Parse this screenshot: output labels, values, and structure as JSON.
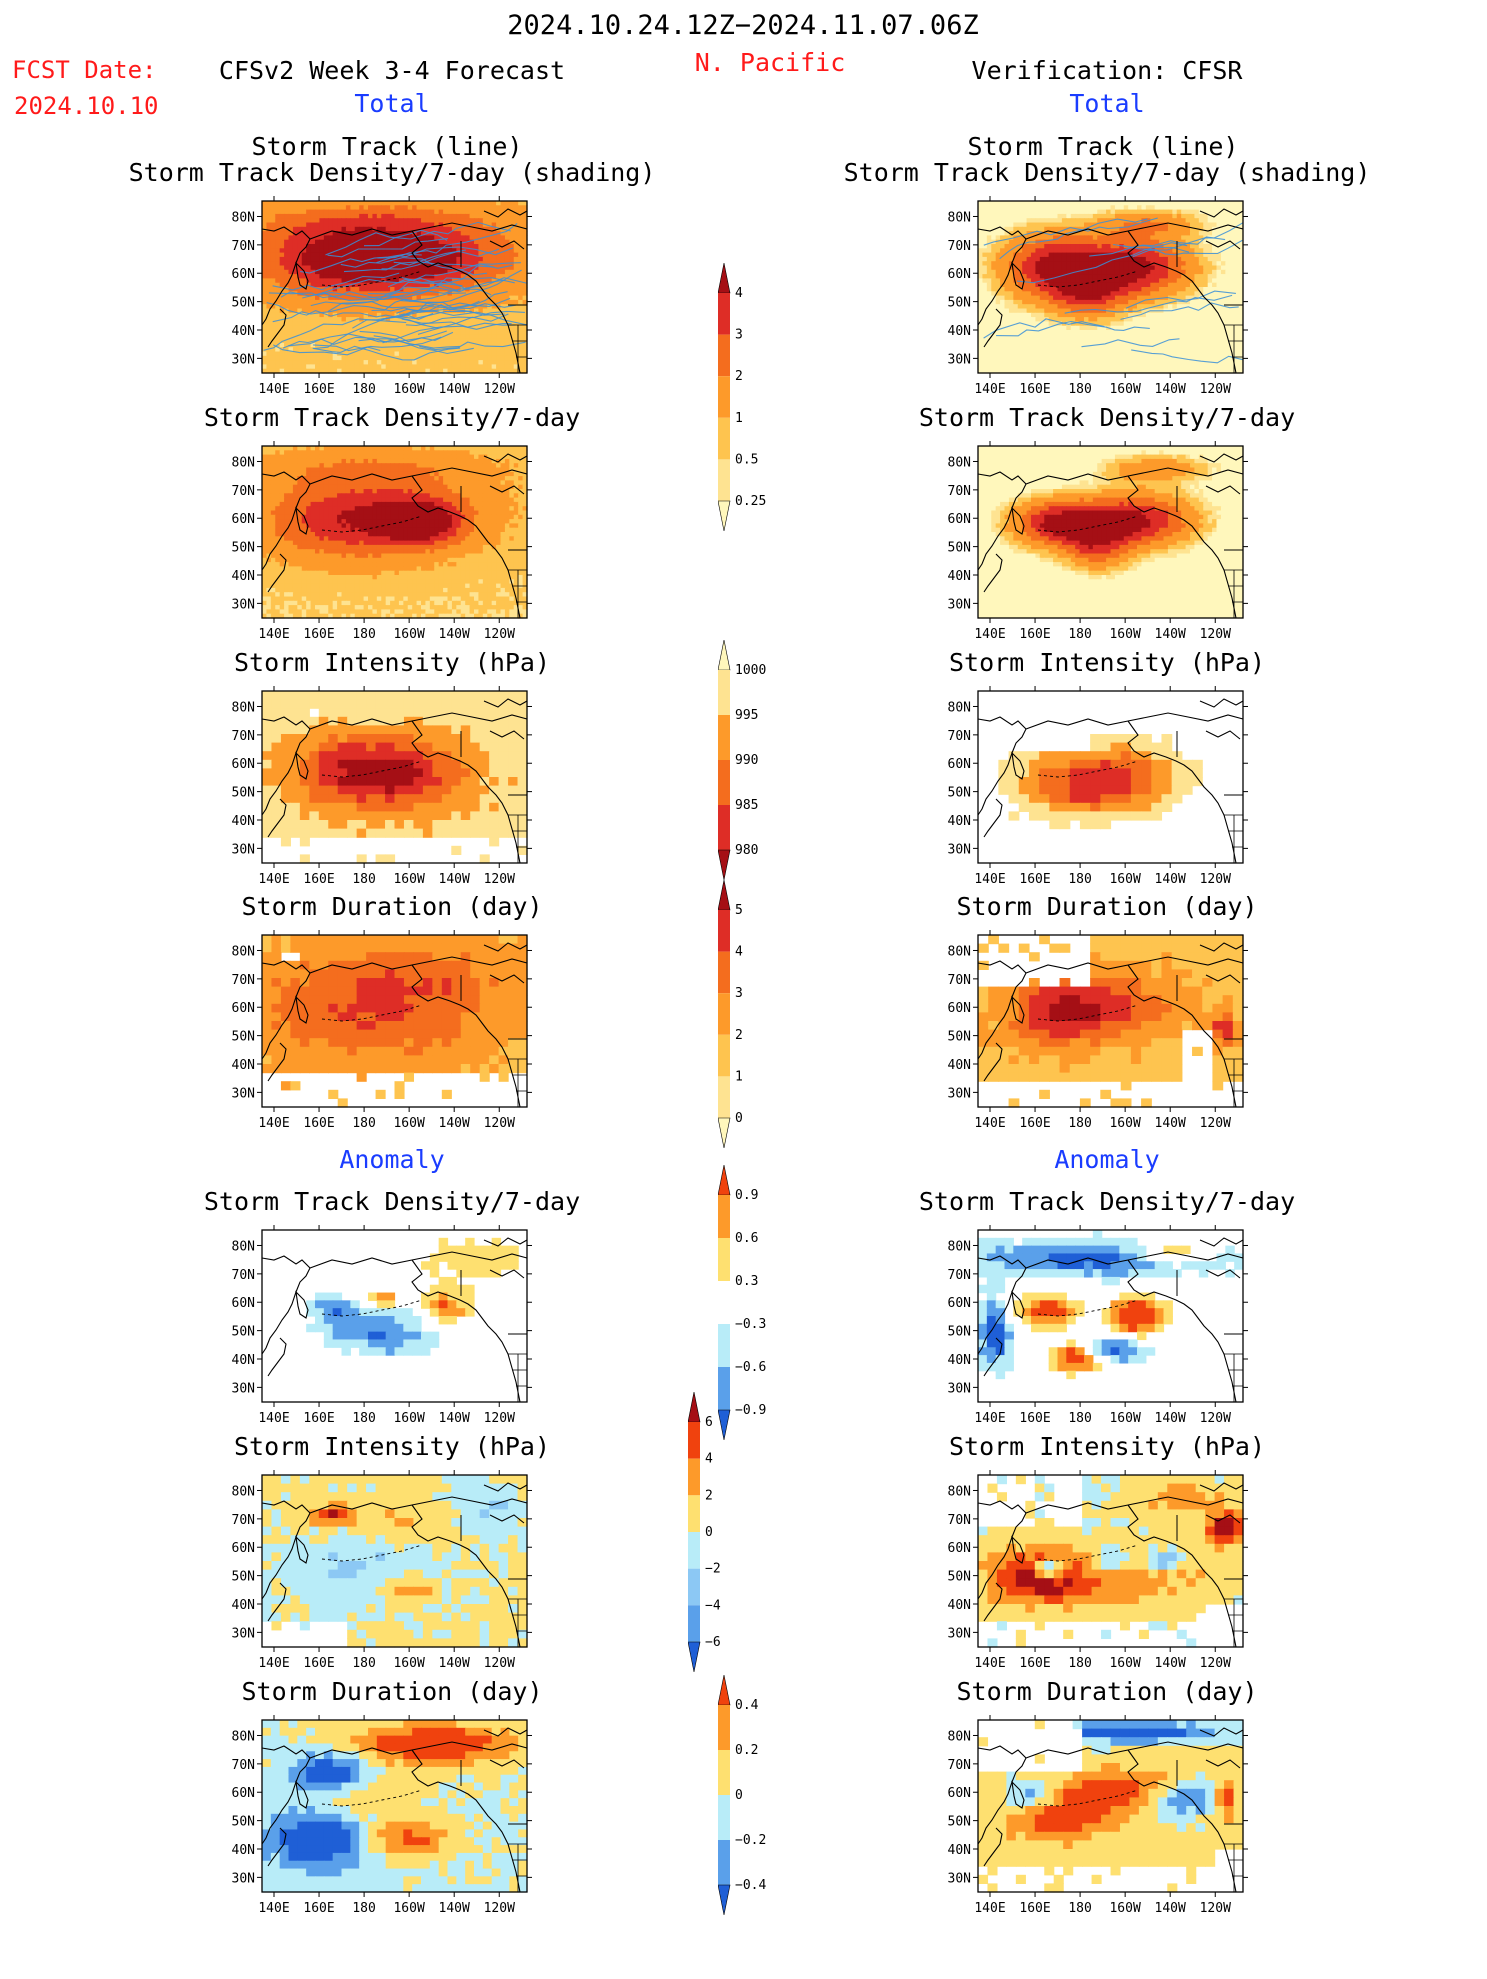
{
  "header": {
    "date_range": "2024.10.24.12Z−2024.11.07.06Z",
    "region": "N. Pacific",
    "fcst_label": "FCST Date:",
    "fcst_date": "2024.10.10",
    "model_title": "CFSv2 Week 3-4 Forecast",
    "verification_title": "Verification: CFSR",
    "total_left": "Total",
    "total_right": "Total",
    "anomaly_left": "Anomaly",
    "anomaly_right": "Anomaly"
  },
  "axes": {
    "lat_ticks": [
      "80N",
      "70N",
      "60N",
      "50N",
      "40N",
      "30N"
    ],
    "lon_ticks": [
      "140E",
      "160E",
      "180",
      "160W",
      "140W",
      "120W"
    ]
  },
  "panels": {
    "l1": {
      "title1": "Storm Track (line)",
      "title2": "Storm Track Density/7-day (shading)"
    },
    "r1": {
      "title1": "Storm Track (line)",
      "title2": "Storm Track Density/7-day (shading)"
    },
    "l2": {
      "title1": "Storm Track Density/7-day"
    },
    "r2": {
      "title1": "Storm Track Density/7-day"
    },
    "l3": {
      "title1": "Storm Intensity (hPa)"
    },
    "r3": {
      "title1": "Storm Intensity (hPa)"
    },
    "l4": {
      "title1": "Storm Duration (day)"
    },
    "r4": {
      "title1": "Storm Duration (day)"
    },
    "l5": {
      "title1": "Storm Track Density/7-day"
    },
    "r5": {
      "title1": "Storm Track Density/7-day"
    },
    "l6": {
      "title1": "Storm Intensity (hPa)"
    },
    "r6": {
      "title1": "Storm Intensity (hPa)"
    },
    "l7": {
      "title1": "Storm Duration (day)"
    },
    "r7": {
      "title1": "Storm Duration (day)"
    }
  },
  "colorbars": {
    "density": {
      "labels": [
        "4",
        "3",
        "2",
        "1",
        "0.5",
        "0.25"
      ],
      "colors": [
        "#a50f15",
        "#de2d26",
        "#f46d1e",
        "#fd9a2a",
        "#fec44f",
        "#fee391",
        "#fff7bc"
      ]
    },
    "intensity": {
      "labels": [
        "1000",
        "995",
        "990",
        "985",
        "980"
      ],
      "colors": [
        "#fff7bc",
        "#fee391",
        "#fd9a2a",
        "#f46d1e",
        "#de2d26",
        "#a50f15"
      ]
    },
    "duration": {
      "labels": [
        "5",
        "4",
        "3",
        "2",
        "1",
        "0"
      ],
      "colors": [
        "#a50f15",
        "#de2d26",
        "#f46d1e",
        "#fd9a2a",
        "#fec44f",
        "#fee391",
        "#fff7bc"
      ]
    },
    "anom_density": {
      "labels": [
        "0.9",
        "0.6",
        "0.3",
        "−0.3",
        "−0.6",
        "−0.9"
      ],
      "colors": [
        "#f0420e",
        "#fd9a2a",
        "#fee070",
        "#ffffff",
        "#b8ecf8",
        "#5aa0ea",
        "#1f5fd6"
      ]
    },
    "anom_intensity": {
      "labels": [
        "6",
        "4",
        "2",
        "0",
        "−2",
        "−4",
        "−6"
      ],
      "colors": [
        "#a50f15",
        "#f0420e",
        "#fd9a2a",
        "#fee070",
        "#b8ecf8",
        "#8cc8f4",
        "#5aa0ea",
        "#1f5fd6"
      ]
    },
    "anom_duration": {
      "labels": [
        "0.4",
        "0.2",
        "0",
        "−0.2",
        "−0.4"
      ],
      "colors": [
        "#f0420e",
        "#fd9a2a",
        "#fee070",
        "#b8ecf8",
        "#5aa0ea",
        "#1f5fd6"
      ]
    }
  },
  "palette": {
    "warm": [
      "#fff7bc",
      "#fee391",
      "#fec44f",
      "#fd9a2a",
      "#f46d1e",
      "#de2d26",
      "#a50f15"
    ],
    "anom": [
      "#1f5fd6",
      "#5aa0ea",
      "#b8ecf8",
      "#ffffff",
      "#fee070",
      "#fd9a2a",
      "#f0420e",
      "#a50f15"
    ],
    "track_line": "#3a8fd8"
  }
}
